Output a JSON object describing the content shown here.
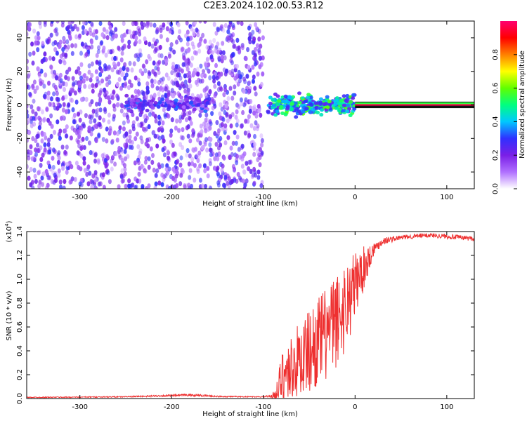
{
  "title": "C2E3.2024.102.00.53.R12",
  "chart_data": [
    {
      "type": "heatmap",
      "xlabel": "Height of straight line (km)",
      "ylabel": "Frequency (Hz)",
      "xlim": [
        -358,
        130
      ],
      "ylim": [
        -50,
        50
      ],
      "x_ticks": [
        -300,
        -200,
        -100,
        0,
        100
      ],
      "y_ticks": [
        -40,
        -20,
        0,
        20,
        40
      ],
      "colorbar": {
        "label": "Normalized spectral amplitude",
        "range": [
          0.0,
          1.0
        ],
        "ticks": [
          0.0,
          0.2,
          0.4,
          0.6,
          0.8
        ],
        "colormap": [
          "#ffffff",
          "#b070ff",
          "#7a1fe6",
          "#3030ff",
          "#00c8ff",
          "#00ff80",
          "#60ff00",
          "#ffff00",
          "#ff8000",
          "#ff0000",
          "#ff0070"
        ]
      },
      "regions": [
        {
          "x_range": [
            -358,
            -100
          ],
          "freq_range": [
            -50,
            50
          ],
          "amplitude_range": [
            0.0,
            0.2
          ],
          "description": "broadband noise"
        },
        {
          "x_range": [
            -250,
            -160
          ],
          "freq_range": [
            -5,
            6
          ],
          "amplitude_range": [
            0.1,
            0.35
          ]
        },
        {
          "x_range": [
            -95,
            0
          ],
          "freq_range": [
            -8,
            8
          ],
          "amplitude_range": [
            0.2,
            0.6
          ]
        },
        {
          "x_range": [
            0,
            130
          ],
          "freq_range": [
            -1.5,
            1.5
          ],
          "amplitude_range": [
            0.9,
            1.0
          ],
          "description": "carrier line"
        }
      ]
    },
    {
      "type": "line",
      "xlabel": "Height of straight line (km)",
      "ylabel": "SNR (10 * v/v)",
      "y_multiplier": "(x10",
      "y_multiplier_exp": "4",
      "y_multiplier_close": ")",
      "xlim": [
        -358,
        130
      ],
      "ylim": [
        0.0,
        1.4
      ],
      "x_ticks": [
        -300,
        -200,
        -100,
        0,
        100
      ],
      "y_ticks": [
        0.0,
        0.2,
        0.4,
        0.6,
        0.8,
        1.0,
        1.2,
        1.4
      ],
      "series": [
        {
          "color": "#ee3030",
          "x": [
            -358,
            -300,
            -250,
            -200,
            -180,
            -150,
            -120,
            -100,
            -90,
            -85,
            -80,
            -70,
            -60,
            -50,
            -40,
            -30,
            -20,
            -10,
            0,
            10,
            20,
            30,
            50,
            80,
            100,
            130
          ],
          "y": [
            0.01,
            0.012,
            0.015,
            0.025,
            0.03,
            0.018,
            0.015,
            0.015,
            0.02,
            0.05,
            0.18,
            0.25,
            0.33,
            0.4,
            0.48,
            0.55,
            0.65,
            0.78,
            0.95,
            1.1,
            1.25,
            1.32,
            1.35,
            1.37,
            1.36,
            1.34
          ],
          "noise_amplitude": [
            0.004,
            0.004,
            0.005,
            0.008,
            0.01,
            0.006,
            0.004,
            0.004,
            0.02,
            0.1,
            0.22,
            0.28,
            0.32,
            0.35,
            0.38,
            0.4,
            0.4,
            0.38,
            0.3,
            0.18,
            0.06,
            0.03,
            0.02,
            0.02,
            0.02,
            0.02
          ]
        }
      ]
    }
  ]
}
